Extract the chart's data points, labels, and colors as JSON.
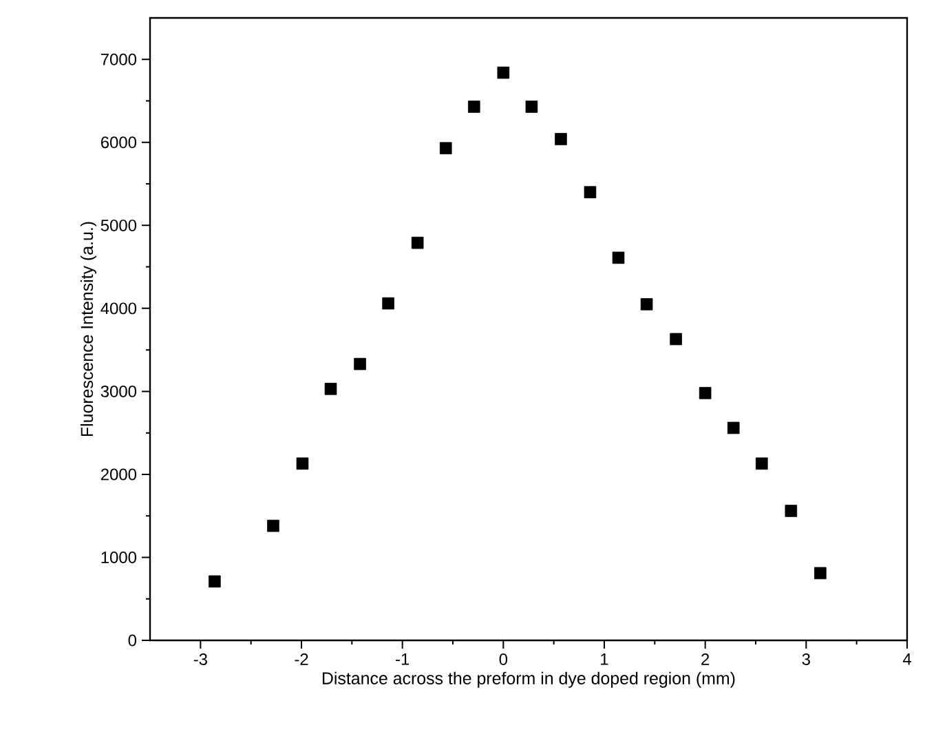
{
  "chart_data": {
    "type": "scatter",
    "xlabel": "Distance across the preform in dye doped region (mm)",
    "ylabel": "Fluorescence Intensity (a.u.)",
    "xlim": [
      -3.5,
      4
    ],
    "ylim": [
      0,
      7500
    ],
    "xticks": [
      -3,
      -2,
      -1,
      0,
      1,
      2,
      3,
      4
    ],
    "yticks": [
      0,
      1000,
      2000,
      3000,
      4000,
      5000,
      6000,
      7000
    ],
    "marker": "square",
    "series": [
      {
        "color": "#000000",
        "x": [
          -2.86,
          -2.28,
          -1.99,
          -1.71,
          -1.42,
          -1.14,
          -0.85,
          -0.57,
          -0.29,
          0,
          0.28,
          0.57,
          0.86,
          1.14,
          1.42,
          1.71,
          2.0,
          2.28,
          2.56,
          2.85,
          3.14
        ],
        "values": [
          710,
          1380,
          2130,
          3030,
          3330,
          4060,
          4790,
          5930,
          6430,
          6840,
          6430,
          6040,
          5400,
          4610,
          4050,
          3630,
          2980,
          2560,
          2130,
          1560,
          810
        ]
      }
    ]
  }
}
